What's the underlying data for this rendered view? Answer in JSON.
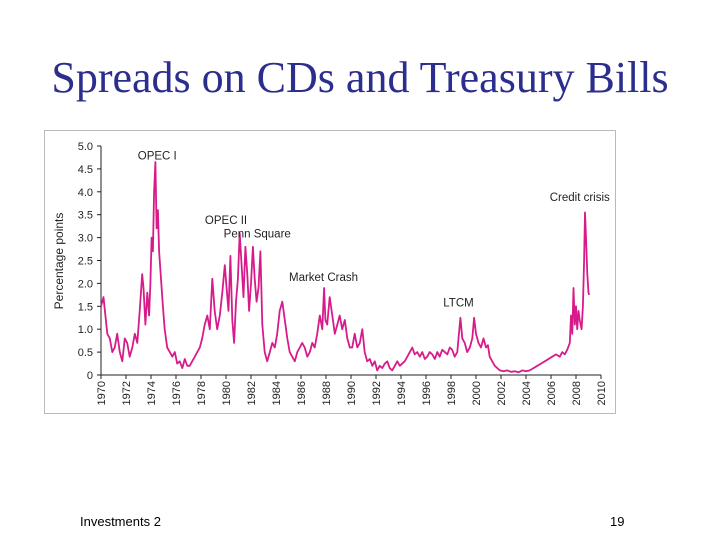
{
  "slide": {
    "title": "Spreads on CDs and Treasury Bills",
    "footer_left": "Investments 2",
    "page_number": "19"
  },
  "chart_data": {
    "type": "line",
    "ylabel": "Percentage points",
    "xlim": [
      1970,
      2010
    ],
    "ylim": [
      0,
      5.0
    ],
    "x_ticks": [
      "1970",
      "1972",
      "1974",
      "1976",
      "1978",
      "1980",
      "1982",
      "1984",
      "1986",
      "1988",
      "1990",
      "1992",
      "1994",
      "1996",
      "1998",
      "2000",
      "2002",
      "2004",
      "2006",
      "2008",
      "2010"
    ],
    "y_ticks": [
      "0",
      "0.5",
      "1.0",
      "1.5",
      "2.0",
      "2.5",
      "3.0",
      "3.5",
      "4.0",
      "4.5",
      "5.0"
    ],
    "grid": false,
    "line_color": "#d81b8a",
    "annotations": [
      {
        "text": "OPEC I",
        "x": 1974.5,
        "y": 4.7
      },
      {
        "text": "OPEC II",
        "x": 1980,
        "y": 3.3
      },
      {
        "text": "Penn Square",
        "x": 1982.5,
        "y": 3.0
      },
      {
        "text": "Market Crash",
        "x": 1987.8,
        "y": 2.05
      },
      {
        "text": "LTCM",
        "x": 1998.6,
        "y": 1.5
      },
      {
        "text": "Credit crisis",
        "x": 2008.3,
        "y": 3.8
      }
    ],
    "series": [
      {
        "values": [
          [
            1970.0,
            1.5
          ],
          [
            1970.2,
            1.7
          ],
          [
            1970.35,
            1.3
          ],
          [
            1970.5,
            0.9
          ],
          [
            1970.7,
            0.8
          ],
          [
            1970.9,
            0.5
          ],
          [
            1971.1,
            0.6
          ],
          [
            1971.3,
            0.9
          ],
          [
            1971.5,
            0.5
          ],
          [
            1971.7,
            0.3
          ],
          [
            1971.9,
            0.8
          ],
          [
            1972.1,
            0.7
          ],
          [
            1972.3,
            0.4
          ],
          [
            1972.5,
            0.6
          ],
          [
            1972.7,
            0.9
          ],
          [
            1972.9,
            0.7
          ],
          [
            1973.1,
            1.4
          ],
          [
            1973.3,
            2.2
          ],
          [
            1973.4,
            1.9
          ],
          [
            1973.55,
            1.1
          ],
          [
            1973.7,
            1.8
          ],
          [
            1973.85,
            1.3
          ],
          [
            1973.95,
            2.0
          ],
          [
            1974.05,
            3.0
          ],
          [
            1974.15,
            2.7
          ],
          [
            1974.25,
            4.0
          ],
          [
            1974.35,
            4.65
          ],
          [
            1974.45,
            3.2
          ],
          [
            1974.55,
            3.6
          ],
          [
            1974.65,
            2.7
          ],
          [
            1974.8,
            2.1
          ],
          [
            1974.95,
            1.5
          ],
          [
            1975.1,
            1.0
          ],
          [
            1975.3,
            0.6
          ],
          [
            1975.5,
            0.5
          ],
          [
            1975.7,
            0.4
          ],
          [
            1975.9,
            0.5
          ],
          [
            1976.1,
            0.25
          ],
          [
            1976.3,
            0.3
          ],
          [
            1976.5,
            0.15
          ],
          [
            1976.7,
            0.35
          ],
          [
            1976.9,
            0.2
          ],
          [
            1977.1,
            0.2
          ],
          [
            1977.3,
            0.3
          ],
          [
            1977.5,
            0.4
          ],
          [
            1977.7,
            0.5
          ],
          [
            1977.9,
            0.6
          ],
          [
            1978.1,
            0.8
          ],
          [
            1978.3,
            1.1
          ],
          [
            1978.5,
            1.3
          ],
          [
            1978.7,
            1.0
          ],
          [
            1978.9,
            2.1
          ],
          [
            1979.1,
            1.4
          ],
          [
            1979.3,
            1.0
          ],
          [
            1979.5,
            1.3
          ],
          [
            1979.7,
            1.8
          ],
          [
            1979.9,
            2.4
          ],
          [
            1980.05,
            1.9
          ],
          [
            1980.2,
            1.4
          ],
          [
            1980.35,
            2.6
          ],
          [
            1980.5,
            1.2
          ],
          [
            1980.65,
            0.7
          ],
          [
            1980.8,
            1.6
          ],
          [
            1980.95,
            2.1
          ],
          [
            1981.1,
            3.1
          ],
          [
            1981.25,
            2.4
          ],
          [
            1981.4,
            1.7
          ],
          [
            1981.55,
            2.8
          ],
          [
            1981.7,
            2.2
          ],
          [
            1981.85,
            1.4
          ],
          [
            1982.0,
            2.0
          ],
          [
            1982.15,
            2.8
          ],
          [
            1982.3,
            2.1
          ],
          [
            1982.45,
            1.6
          ],
          [
            1982.6,
            1.9
          ],
          [
            1982.75,
            2.7
          ],
          [
            1982.9,
            1.1
          ],
          [
            1983.1,
            0.5
          ],
          [
            1983.3,
            0.3
          ],
          [
            1983.5,
            0.5
          ],
          [
            1983.7,
            0.7
          ],
          [
            1983.9,
            0.6
          ],
          [
            1984.1,
            0.9
          ],
          [
            1984.3,
            1.4
          ],
          [
            1984.5,
            1.6
          ],
          [
            1984.7,
            1.2
          ],
          [
            1984.9,
            0.8
          ],
          [
            1985.1,
            0.5
          ],
          [
            1985.3,
            0.4
          ],
          [
            1985.5,
            0.3
          ],
          [
            1985.7,
            0.5
          ],
          [
            1985.9,
            0.6
          ],
          [
            1986.1,
            0.7
          ],
          [
            1986.3,
            0.6
          ],
          [
            1986.5,
            0.4
          ],
          [
            1986.7,
            0.5
          ],
          [
            1986.9,
            0.7
          ],
          [
            1987.1,
            0.6
          ],
          [
            1987.3,
            0.9
          ],
          [
            1987.5,
            1.3
          ],
          [
            1987.7,
            1.0
          ],
          [
            1987.85,
            1.9
          ],
          [
            1987.95,
            1.2
          ],
          [
            1988.1,
            1.1
          ],
          [
            1988.3,
            1.7
          ],
          [
            1988.5,
            1.3
          ],
          [
            1988.7,
            0.9
          ],
          [
            1988.9,
            1.1
          ],
          [
            1989.1,
            1.3
          ],
          [
            1989.3,
            1.0
          ],
          [
            1989.5,
            1.2
          ],
          [
            1989.7,
            0.8
          ],
          [
            1989.9,
            0.6
          ],
          [
            1990.1,
            0.6
          ],
          [
            1990.3,
            0.9
          ],
          [
            1990.5,
            0.6
          ],
          [
            1990.7,
            0.7
          ],
          [
            1990.9,
            1.0
          ],
          [
            1991.1,
            0.5
          ],
          [
            1991.3,
            0.3
          ],
          [
            1991.5,
            0.35
          ],
          [
            1991.7,
            0.2
          ],
          [
            1991.9,
            0.3
          ],
          [
            1992.1,
            0.1
          ],
          [
            1992.3,
            0.2
          ],
          [
            1992.5,
            0.15
          ],
          [
            1992.7,
            0.25
          ],
          [
            1992.9,
            0.3
          ],
          [
            1993.1,
            0.15
          ],
          [
            1993.3,
            0.1
          ],
          [
            1993.5,
            0.2
          ],
          [
            1993.7,
            0.3
          ],
          [
            1993.9,
            0.2
          ],
          [
            1994.1,
            0.25
          ],
          [
            1994.3,
            0.3
          ],
          [
            1994.5,
            0.4
          ],
          [
            1994.7,
            0.5
          ],
          [
            1994.9,
            0.6
          ],
          [
            1995.1,
            0.45
          ],
          [
            1995.3,
            0.5
          ],
          [
            1995.5,
            0.4
          ],
          [
            1995.7,
            0.5
          ],
          [
            1995.9,
            0.35
          ],
          [
            1996.1,
            0.4
          ],
          [
            1996.3,
            0.5
          ],
          [
            1996.5,
            0.45
          ],
          [
            1996.7,
            0.35
          ],
          [
            1996.9,
            0.5
          ],
          [
            1997.1,
            0.4
          ],
          [
            1997.3,
            0.55
          ],
          [
            1997.5,
            0.5
          ],
          [
            1997.7,
            0.45
          ],
          [
            1997.9,
            0.6
          ],
          [
            1998.1,
            0.55
          ],
          [
            1998.3,
            0.4
          ],
          [
            1998.5,
            0.5
          ],
          [
            1998.6,
            0.8
          ],
          [
            1998.75,
            1.25
          ],
          [
            1998.9,
            0.8
          ],
          [
            1999.1,
            0.7
          ],
          [
            1999.3,
            0.5
          ],
          [
            1999.5,
            0.6
          ],
          [
            1999.7,
            0.8
          ],
          [
            1999.85,
            1.25
          ],
          [
            2000.0,
            0.9
          ],
          [
            2000.2,
            0.7
          ],
          [
            2000.4,
            0.6
          ],
          [
            2000.6,
            0.8
          ],
          [
            2000.8,
            0.6
          ],
          [
            2000.95,
            0.65
          ],
          [
            2001.1,
            0.4
          ],
          [
            2001.3,
            0.3
          ],
          [
            2001.5,
            0.2
          ],
          [
            2001.7,
            0.15
          ],
          [
            2001.9,
            0.1
          ],
          [
            2002.2,
            0.08
          ],
          [
            2002.5,
            0.1
          ],
          [
            2002.8,
            0.07
          ],
          [
            2003.1,
            0.08
          ],
          [
            2003.4,
            0.06
          ],
          [
            2003.7,
            0.1
          ],
          [
            2004.0,
            0.08
          ],
          [
            2004.3,
            0.1
          ],
          [
            2004.6,
            0.15
          ],
          [
            2004.9,
            0.2
          ],
          [
            2005.2,
            0.25
          ],
          [
            2005.5,
            0.3
          ],
          [
            2005.8,
            0.35
          ],
          [
            2006.1,
            0.4
          ],
          [
            2006.4,
            0.45
          ],
          [
            2006.7,
            0.4
          ],
          [
            2006.9,
            0.5
          ],
          [
            2007.1,
            0.45
          ],
          [
            2007.3,
            0.55
          ],
          [
            2007.5,
            0.7
          ],
          [
            2007.6,
            1.3
          ],
          [
            2007.7,
            0.9
          ],
          [
            2007.8,
            1.9
          ],
          [
            2007.9,
            1.1
          ],
          [
            2008.0,
            1.5
          ],
          [
            2008.1,
            1.0
          ],
          [
            2008.2,
            1.4
          ],
          [
            2008.3,
            1.2
          ],
          [
            2008.45,
            1.0
          ],
          [
            2008.55,
            1.5
          ],
          [
            2008.65,
            2.5
          ],
          [
            2008.72,
            3.55
          ],
          [
            2008.8,
            3.0
          ],
          [
            2008.9,
            2.2
          ],
          [
            2009.0,
            1.8
          ],
          [
            2009.05,
            1.75
          ]
        ]
      }
    ]
  }
}
